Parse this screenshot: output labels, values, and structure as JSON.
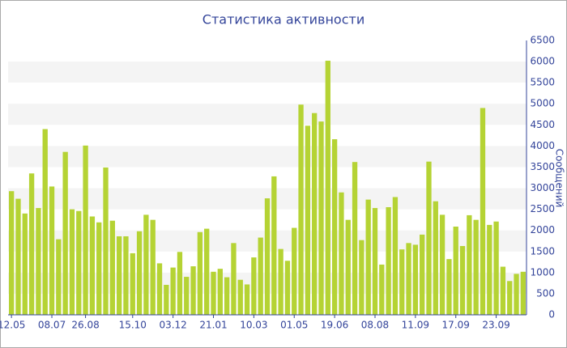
{
  "chart_data": {
    "type": "bar",
    "title": "Статистика активности",
    "y_label": "Сообщений",
    "categories": [
      "12.05",
      null,
      null,
      null,
      null,
      null,
      "08.07",
      null,
      null,
      null,
      null,
      "26.08",
      null,
      null,
      null,
      null,
      null,
      null,
      "15.10",
      null,
      null,
      null,
      null,
      null,
      "03.12",
      null,
      null,
      null,
      null,
      null,
      "21.01",
      null,
      null,
      null,
      null,
      null,
      "10.03",
      null,
      null,
      null,
      null,
      null,
      "01.05",
      null,
      null,
      null,
      null,
      null,
      "19.06",
      null,
      null,
      null,
      null,
      null,
      "08.08",
      null,
      null,
      null,
      null,
      null,
      "11.09",
      null,
      null,
      null,
      null,
      null,
      "17.09",
      null,
      null,
      null,
      null,
      null,
      "23.09",
      null,
      null,
      null,
      null
    ],
    "values": [
      2930,
      2750,
      2400,
      3350,
      2530,
      4400,
      3040,
      1790,
      3860,
      2500,
      2460,
      4010,
      2330,
      2190,
      3490,
      2230,
      1860,
      1860,
      1460,
      1980,
      2370,
      2250,
      1220,
      710,
      1120,
      1490,
      900,
      1150,
      1960,
      2040,
      1020,
      1090,
      890,
      1700,
      830,
      720,
      1360,
      1830,
      2760,
      3280,
      1560,
      1280,
      2060,
      4980,
      4480,
      4780,
      4580,
      6020,
      4160,
      2900,
      2250,
      3620,
      1770,
      2730,
      2530,
      1190,
      2550,
      2790,
      1550,
      1700,
      1660,
      1900,
      3630,
      2690,
      2370,
      1320,
      2090,
      1630,
      2360,
      2250,
      4900,
      2130,
      2210,
      1140,
      800,
      970,
      1020
    ],
    "color": "#b5d334",
    "ylim": [
      0,
      6500
    ],
    "yticks": [
      0,
      500,
      1000,
      1500,
      2000,
      2500,
      3000,
      3500,
      4000,
      4500,
      5000,
      5500,
      6000,
      6500
    ],
    "grid": true,
    "y_axis_side": "right"
  }
}
